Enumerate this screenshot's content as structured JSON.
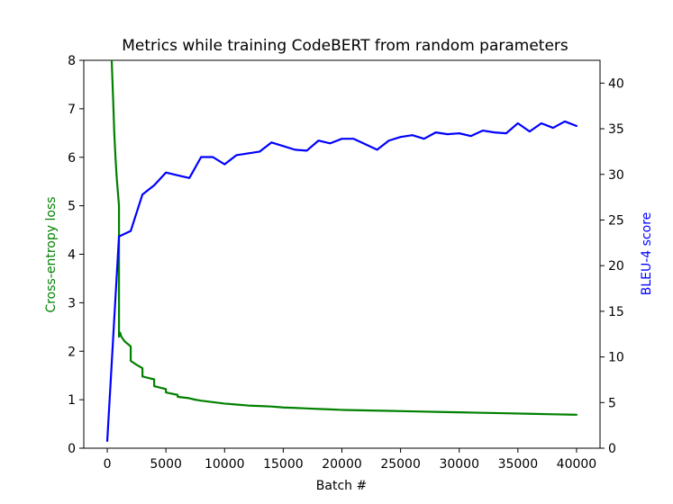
{
  "chart_data": {
    "type": "line",
    "title": "Metrics while training CodeBERT from random parameters",
    "xlabel": "Batch #",
    "ylabel_left": "Cross-entropy loss",
    "ylabel_right": "BLEU-4 score",
    "xlim": [
      -2000,
      42000
    ],
    "ylim_left": [
      0,
      8
    ],
    "ylim_right": [
      0,
      42.5
    ],
    "x_ticks": [
      0,
      5000,
      10000,
      15000,
      20000,
      25000,
      30000,
      35000,
      40000
    ],
    "y_ticks_left": [
      0,
      1,
      2,
      3,
      4,
      5,
      6,
      7,
      8
    ],
    "y_ticks_right": [
      0,
      5,
      10,
      15,
      20,
      25,
      30,
      35,
      40
    ],
    "grid": false,
    "series": [
      {
        "name": "Cross-entropy loss",
        "axis": "left",
        "color": "#008000",
        "x": [
          350,
          500,
          600,
          700,
          800,
          1000,
          1001,
          1100,
          1200,
          1500,
          2000,
          2001,
          2500,
          3000,
          3001,
          3500,
          4000,
          4001,
          5000,
          5001,
          6000,
          6001,
          7000,
          7500,
          8000,
          9000,
          10000,
          11000,
          12000,
          13000,
          14000,
          15000,
          16000,
          17000,
          18000,
          19000,
          20000,
          22000,
          24000,
          26000,
          28000,
          30000,
          32000,
          34000,
          36000,
          38000,
          40000
        ],
        "y": [
          8.2,
          7.2,
          6.5,
          6.0,
          5.6,
          5.0,
          2.3,
          2.38,
          2.3,
          2.2,
          2.1,
          1.8,
          1.72,
          1.65,
          1.48,
          1.45,
          1.42,
          1.28,
          1.22,
          1.15,
          1.1,
          1.06,
          1.03,
          1.0,
          0.98,
          0.95,
          0.92,
          0.9,
          0.88,
          0.87,
          0.86,
          0.84,
          0.83,
          0.82,
          0.81,
          0.8,
          0.79,
          0.78,
          0.77,
          0.76,
          0.75,
          0.74,
          0.73,
          0.72,
          0.71,
          0.7,
          0.69
        ]
      },
      {
        "name": "BLEU-4 score",
        "axis": "right",
        "color": "#0000ff",
        "x": [
          0,
          1000,
          2000,
          3000,
          4000,
          5000,
          6000,
          7000,
          8000,
          9000,
          10000,
          11000,
          12000,
          13000,
          14000,
          15000,
          16000,
          17000,
          18000,
          19000,
          20000,
          21000,
          22000,
          23000,
          24000,
          25000,
          26000,
          27000,
          28000,
          29000,
          30000,
          31000,
          32000,
          33000,
          34000,
          35000,
          36000,
          37000,
          38000,
          39000,
          40000
        ],
        "y": [
          0.8,
          23.2,
          23.8,
          27.8,
          28.8,
          30.2,
          29.9,
          29.6,
          31.9,
          31.9,
          31.1,
          32.1,
          32.3,
          32.5,
          33.5,
          33.1,
          32.7,
          32.6,
          33.7,
          33.4,
          33.9,
          33.9,
          33.3,
          32.7,
          33.7,
          34.1,
          34.3,
          33.9,
          34.6,
          34.4,
          34.5,
          34.2,
          34.8,
          34.6,
          34.5,
          35.6,
          34.7,
          35.6,
          35.1,
          35.8,
          35.3
        ]
      }
    ]
  }
}
